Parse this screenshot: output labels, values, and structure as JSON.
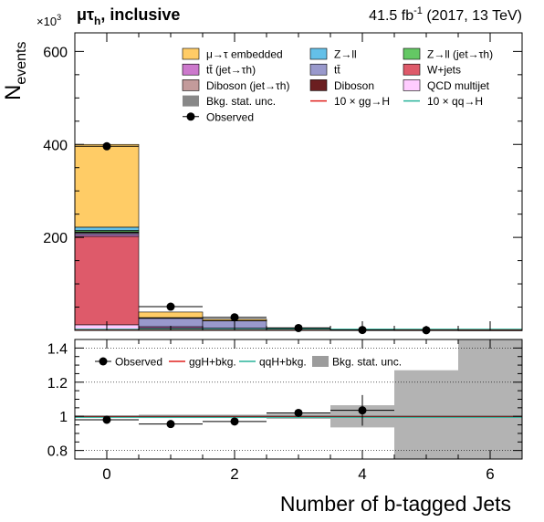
{
  "header": {
    "channel": "μτ",
    "channel_sub": "h",
    "category": ", inclusive",
    "lumi": "41.5 fb",
    "lumi_sup": "-1",
    "lumi_tail": " (2017, 13 TeV)"
  },
  "chart_data": [
    {
      "panel": "main",
      "type": "bar",
      "stacked": true,
      "ylabel": "N",
      "ylabel_sub": "events",
      "y_scale_label": "×10",
      "y_scale_sup": "3",
      "x": [
        0,
        1,
        2,
        3,
        4,
        5,
        6
      ],
      "xlim": [
        -0.5,
        6.5
      ],
      "ylim": [
        0,
        640
      ],
      "y_ticks": [
        200,
        400,
        600
      ],
      "series": [
        {
          "name": "QCD multijet",
          "color": "#ffccff",
          "values": [
            12,
            2.5,
            1,
            0.4,
            0.1,
            0.05,
            0.02
          ]
        },
        {
          "name": "W+jets",
          "color": "#de5a6a",
          "values": [
            190,
            2.5,
            0.8,
            0.2,
            0.05,
            0.02,
            0.01
          ]
        },
        {
          "name": "tt̄ (jet→τh)",
          "color": "#cc79cc",
          "values": [
            4,
            3,
            3,
            1,
            0.3,
            0.1,
            0.02
          ]
        },
        {
          "name": "tt̄",
          "color": "#9999cc",
          "values": [
            3,
            18,
            16,
            3,
            0.5,
            0.1,
            0.02
          ]
        },
        {
          "name": "Diboson (jet→τh)",
          "color": "#c39b9b",
          "values": [
            2,
            0.3,
            0.1,
            0.02,
            0.01,
            0,
            0
          ]
        },
        {
          "name": "Diboson",
          "color": "#6b1e20",
          "values": [
            1,
            0.3,
            0.1,
            0.02,
            0.01,
            0,
            0
          ]
        },
        {
          "name": "Z→ll (jet→τh)",
          "color": "#64c864",
          "values": [
            3,
            0.3,
            0.1,
            0.02,
            0.01,
            0,
            0
          ]
        },
        {
          "name": "Z→ll",
          "color": "#64c0e8",
          "values": [
            7,
            0.5,
            0.2,
            0.05,
            0.01,
            0,
            0
          ]
        },
        {
          "name": "μ→τ embedded",
          "color": "#ffcc66",
          "values": [
            178,
            12,
            3,
            1,
            0.3,
            0.1,
            0.02
          ]
        }
      ],
      "signals": [
        {
          "name": "10 × gg→H",
          "color": "#e0201e"
        },
        {
          "name": "10 × qq→H",
          "color": "#29b39a"
        }
      ],
      "uncertainty": {
        "name": "Bkg. stat. unc.",
        "color": "#888888"
      },
      "observed": {
        "name": "Observed",
        "x": [
          0,
          1,
          2,
          3,
          4,
          5
        ],
        "values": [
          396,
          51,
          28,
          5,
          0.8,
          0.3
        ]
      }
    },
    {
      "panel": "ratio",
      "type": "scatter",
      "xlabel": "Number of b-tagged Jets",
      "x_ticks": [
        0,
        2,
        4,
        6
      ],
      "xlim": [
        -0.5,
        6.5
      ],
      "ylim": [
        0.75,
        1.45
      ],
      "y_ticks": [
        0.8,
        1,
        1.2,
        1.4
      ],
      "gridlines": [
        0.8,
        1,
        1.2,
        1.4
      ],
      "ratio_points": [
        {
          "x": 0,
          "y": 0.98,
          "err": 0.01
        },
        {
          "x": 1,
          "y": 0.955,
          "err": 0.01
        },
        {
          "x": 2,
          "y": 0.97,
          "err": 0.012
        },
        {
          "x": 3,
          "y": 1.02,
          "err": 0.012
        },
        {
          "x": 4,
          "y": 1.035,
          "err": 0.09
        }
      ],
      "unc_bands": [
        {
          "x0": -0.5,
          "x1": 0.5,
          "lo": 0.995,
          "hi": 1.005
        },
        {
          "x0": 0.5,
          "x1": 1.5,
          "lo": 0.99,
          "hi": 1.01
        },
        {
          "x0": 1.5,
          "x1": 2.5,
          "lo": 0.99,
          "hi": 1.01
        },
        {
          "x0": 2.5,
          "x1": 3.5,
          "lo": 0.985,
          "hi": 1.015
        },
        {
          "x0": 3.5,
          "x1": 4.5,
          "lo": 0.935,
          "hi": 1.065
        },
        {
          "x0": 4.5,
          "x1": 5.5,
          "lo": 0.75,
          "hi": 1.27
        },
        {
          "x0": 5.5,
          "x1": 6.5,
          "lo": 0.75,
          "hi": 1.45
        }
      ],
      "legend": [
        "Observed",
        "ggH+bkg.",
        "qqH+bkg.",
        "Bkg. stat. unc."
      ]
    }
  ]
}
